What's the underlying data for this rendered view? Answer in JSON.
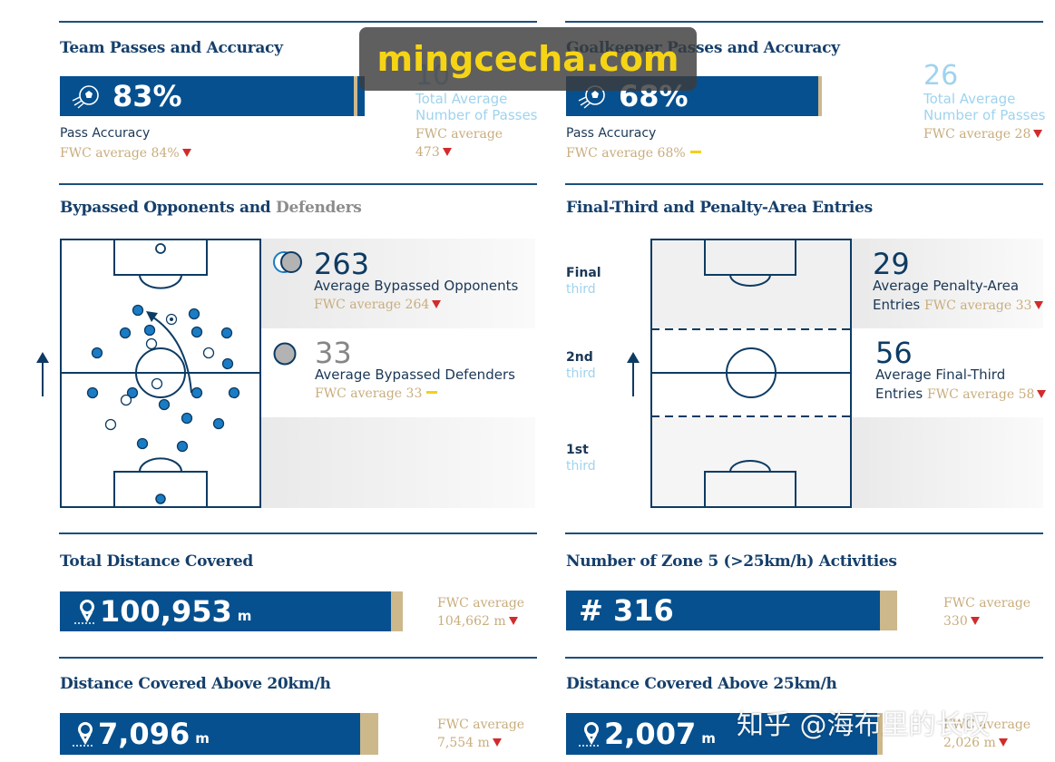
{
  "watermark": "mingcecha.com",
  "zhihu_watermark": "知乎 @海布里的长叹",
  "team_passes": {
    "title": "Team Passes and Accuracy",
    "accuracy": "83%",
    "accuracy_label": "Pass Accuracy",
    "accuracy_fwc": "FWC average 84%",
    "accuracy_trend": "down",
    "accuracy_fill_percent": 83,
    "total_value": "10",
    "total_label_1": "Total Average",
    "total_label_2": "Number of Passes",
    "total_fwc_1": "FWC average",
    "total_fwc_2": "473",
    "total_trend": "down"
  },
  "gk_passes": {
    "title": "Goalkeeper Passes and Accuracy",
    "accuracy": "68%",
    "accuracy_label": "Pass Accuracy",
    "accuracy_fwc": "FWC average 68%",
    "accuracy_trend": "equal",
    "accuracy_fill_percent": 68,
    "total_value": "26",
    "total_label_1": "Total Average",
    "total_label_2": "Number of Passes",
    "total_fwc": "FWC average 28",
    "total_trend": "down"
  },
  "bypassed": {
    "title_main": "Bypassed Opponents and",
    "title_grey": "Defenders",
    "opponents_value": "263",
    "opponents_label": "Average Bypassed Opponents",
    "opponents_fwc": "FWC average 264",
    "opponents_trend": "down",
    "defenders_value": "33",
    "defenders_label": "Average Bypassed Defenders",
    "defenders_fwc": "FWC average 33",
    "defenders_trend": "equal"
  },
  "entries": {
    "title": "Final-Third and Penalty-Area Entries",
    "zones": [
      {
        "name": "Final",
        "sub": "third"
      },
      {
        "name": "2nd",
        "sub": "third"
      },
      {
        "name": "1st",
        "sub": "third"
      }
    ],
    "penalty_value": "29",
    "penalty_label_1": "Average Penalty-Area",
    "penalty_label_2": "Entries",
    "penalty_fwc": "FWC average 33",
    "penalty_trend": "down",
    "final_value": "56",
    "final_label_1": "Average Final-Third",
    "final_label_2": "Entries",
    "final_fwc": "FWC average 58",
    "final_trend": "down"
  },
  "total_distance": {
    "title": "Total Distance Covered",
    "value": "100,953",
    "unit": "m",
    "fwc_1": "FWC average",
    "fwc_2": "104,662 m",
    "trend": "down"
  },
  "zone5": {
    "title": "Number of Zone 5 (>25km/h) Activities",
    "value": "# 316",
    "fwc_1": "FWC average",
    "fwc_2": "330",
    "trend": "down"
  },
  "dist20": {
    "title": "Distance Covered Above 20km/h",
    "value": "7,096",
    "unit": "m",
    "fwc_1": "FWC average",
    "fwc_2": "7,554 m",
    "trend": "down"
  },
  "dist25": {
    "title": "Distance Covered Above 25km/h",
    "value": "2,007",
    "unit": "m",
    "fwc_1": "FWC average",
    "fwc_2": "2,026 m",
    "trend": "down"
  },
  "colors": {
    "bar_blue": "#06508f",
    "gold": "#c8ad7d",
    "light_blue": "#9fd3ee",
    "down_red": "#d22b2b",
    "equal_yellow": "#f2d11a"
  }
}
